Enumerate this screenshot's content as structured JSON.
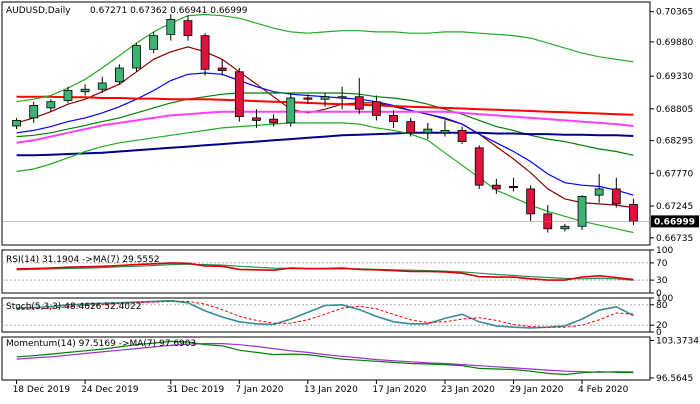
{
  "colors": {
    "bull_fill": "#3cb371",
    "bear_fill": "#dc143c",
    "sma5": "#8b0000",
    "ema10": "#0000ff",
    "sma20": "#008000",
    "sma55": "#ff0000",
    "sma100": "#ff40ff",
    "sma200": "#00008b",
    "bollinger": "#22aa22",
    "rsi_line": "#dd0000",
    "rsi_ma": "#2e8b57",
    "stoch_k": "#3a8a9a",
    "stoch_d": "#ff0000",
    "mom_line": "#008000",
    "mom_ma": "#9932cc",
    "last_price_bg": "#000000",
    "last_price_fg": "#ffffff"
  },
  "main": {
    "title": "AUDUSD,Daily",
    "ohlc": "0.67271 0.67362 0.66941 0.66999",
    "last_price": "0.66999",
    "last_value": 0.66999,
    "y_ticks": [
      "0.70365",
      "0.69880",
      "0.69330",
      "0.68805",
      "0.68295",
      "0.67770",
      "0.67245",
      "0.66735"
    ],
    "y_tick_values": [
      0.70365,
      0.6988,
      0.6933,
      0.68805,
      0.68295,
      0.6777,
      0.67245,
      0.66735
    ],
    "ylim": [
      0.6662,
      0.7052
    ]
  },
  "rsi": {
    "label": "RSI(14) 31.1904  ->MA(7) 29.5552",
    "y_ticks": [
      "100",
      "70",
      "30",
      "0"
    ],
    "y_tick_values": [
      100,
      70,
      30,
      0
    ],
    "ylim": [
      0,
      100
    ]
  },
  "stoch": {
    "label": "Stoch(5,3,3) 48.4626 52.4022",
    "y_ticks": [
      "100",
      "80",
      "20",
      "0"
    ],
    "y_tick_values": [
      100,
      80,
      20,
      0
    ],
    "ylim": [
      0,
      100
    ]
  },
  "momentum": {
    "label": "Momentum(14) 97.5169  ->MA(7) 97.6903",
    "y_ticks": [
      "103.3734",
      "96.5645"
    ],
    "y_tick_values": [
      103.3734,
      96.5645
    ],
    "ylim": [
      96.2,
      104.0
    ]
  },
  "x_labels": [
    "18 Dec 2019",
    "24 Dec 2019",
    "31 Dec 2019",
    "7 Jan 2020",
    "13 Jan 2020",
    "17 Jan 2020",
    "23 Jan 2020",
    "29 Jan 2020",
    "4 Feb 2020"
  ],
  "x_label_index": [
    0,
    4,
    9,
    13,
    17,
    21,
    25,
    29,
    33
  ],
  "chart_data": {
    "type": "candlestick",
    "title": "AUDUSD,Daily",
    "series_names": [],
    "candles": [
      {
        "o": 0.6853,
        "h": 0.6866,
        "l": 0.6848,
        "c": 0.6862
      },
      {
        "o": 0.6866,
        "h": 0.6892,
        "l": 0.6858,
        "c": 0.6886
      },
      {
        "o": 0.6882,
        "h": 0.6896,
        "l": 0.6876,
        "c": 0.6892
      },
      {
        "o": 0.6894,
        "h": 0.6916,
        "l": 0.689,
        "c": 0.691
      },
      {
        "o": 0.6908,
        "h": 0.692,
        "l": 0.6902,
        "c": 0.6912
      },
      {
        "o": 0.6912,
        "h": 0.6932,
        "l": 0.6906,
        "c": 0.6922
      },
      {
        "o": 0.6924,
        "h": 0.6952,
        "l": 0.692,
        "c": 0.6946
      },
      {
        "o": 0.6946,
        "h": 0.6986,
        "l": 0.694,
        "c": 0.6982
      },
      {
        "o": 0.6976,
        "h": 0.7004,
        "l": 0.697,
        "c": 0.6998
      },
      {
        "o": 0.7,
        "h": 0.7032,
        "l": 0.699,
        "c": 0.7024
      },
      {
        "o": 0.7022,
        "h": 0.703,
        "l": 0.699,
        "c": 0.6998
      },
      {
        "o": 0.6998,
        "h": 0.7002,
        "l": 0.6934,
        "c": 0.6944
      },
      {
        "o": 0.6946,
        "h": 0.696,
        "l": 0.6934,
        "c": 0.6942
      },
      {
        "o": 0.694,
        "h": 0.6946,
        "l": 0.686,
        "c": 0.6868
      },
      {
        "o": 0.6866,
        "h": 0.688,
        "l": 0.685,
        "c": 0.6862
      },
      {
        "o": 0.6864,
        "h": 0.6872,
        "l": 0.6852,
        "c": 0.6858
      },
      {
        "o": 0.6858,
        "h": 0.6906,
        "l": 0.6852,
        "c": 0.6898
      },
      {
        "o": 0.6898,
        "h": 0.6904,
        "l": 0.6888,
        "c": 0.6896
      },
      {
        "o": 0.6896,
        "h": 0.6906,
        "l": 0.6884,
        "c": 0.69
      },
      {
        "o": 0.6898,
        "h": 0.6916,
        "l": 0.688,
        "c": 0.69
      },
      {
        "o": 0.69,
        "h": 0.693,
        "l": 0.6872,
        "c": 0.688
      },
      {
        "o": 0.6892,
        "h": 0.6902,
        "l": 0.6862,
        "c": 0.687
      },
      {
        "o": 0.687,
        "h": 0.6878,
        "l": 0.685,
        "c": 0.686
      },
      {
        "o": 0.686,
        "h": 0.6866,
        "l": 0.6836,
        "c": 0.6842
      },
      {
        "o": 0.6842,
        "h": 0.6858,
        "l": 0.6832,
        "c": 0.6848
      },
      {
        "o": 0.6842,
        "h": 0.6862,
        "l": 0.6836,
        "c": 0.6846
      },
      {
        "o": 0.6846,
        "h": 0.6852,
        "l": 0.6824,
        "c": 0.6828
      },
      {
        "o": 0.6818,
        "h": 0.6822,
        "l": 0.6752,
        "c": 0.6758
      },
      {
        "o": 0.6758,
        "h": 0.6768,
        "l": 0.6744,
        "c": 0.6752
      },
      {
        "o": 0.6756,
        "h": 0.677,
        "l": 0.6748,
        "c": 0.6754
      },
      {
        "o": 0.6752,
        "h": 0.6758,
        "l": 0.67,
        "c": 0.6712
      },
      {
        "o": 0.6712,
        "h": 0.6726,
        "l": 0.6682,
        "c": 0.6688
      },
      {
        "o": 0.6688,
        "h": 0.6696,
        "l": 0.6684,
        "c": 0.6692
      },
      {
        "o": 0.6692,
        "h": 0.6742,
        "l": 0.6686,
        "c": 0.674
      },
      {
        "o": 0.6742,
        "h": 0.6776,
        "l": 0.673,
        "c": 0.6752
      },
      {
        "o": 0.6752,
        "h": 0.677,
        "l": 0.6722,
        "c": 0.6728
      },
      {
        "o": 0.6727,
        "h": 0.6736,
        "l": 0.6694,
        "c": 0.67
      }
    ],
    "overlays": [
      {
        "key": "sma5",
        "values": [
          0.6858,
          0.6866,
          0.6876,
          0.6888,
          0.6896,
          0.6908,
          0.692,
          0.694,
          0.696,
          0.6972,
          0.698,
          0.6972,
          0.696,
          0.694,
          0.692,
          0.69,
          0.688,
          0.6874,
          0.688,
          0.6888,
          0.689,
          0.689,
          0.6884,
          0.6878,
          0.6872,
          0.6864,
          0.6856,
          0.684,
          0.682,
          0.68,
          0.6778,
          0.6752,
          0.6736,
          0.673,
          0.6728,
          0.6726,
          0.6722
        ]
      },
      {
        "key": "ema10",
        "values": [
          0.6842,
          0.6846,
          0.6852,
          0.686,
          0.6866,
          0.6874,
          0.6884,
          0.6896,
          0.691,
          0.6926,
          0.6936,
          0.6938,
          0.6936,
          0.6926,
          0.6916,
          0.6908,
          0.6904,
          0.6902,
          0.69,
          0.6898,
          0.6896,
          0.6892,
          0.6886,
          0.6878,
          0.6872,
          0.6866,
          0.6856,
          0.684,
          0.6826,
          0.6812,
          0.6796,
          0.6776,
          0.6762,
          0.6758,
          0.6756,
          0.675,
          0.6742
        ]
      },
      {
        "key": "sma20",
        "values": [
          0.6836,
          0.6838,
          0.6842,
          0.6848,
          0.6854,
          0.686,
          0.6866,
          0.6874,
          0.6882,
          0.689,
          0.6896,
          0.69,
          0.6904,
          0.6906,
          0.6906,
          0.6906,
          0.6906,
          0.6906,
          0.6906,
          0.6906,
          0.6904,
          0.69,
          0.6898,
          0.6894,
          0.6888,
          0.688,
          0.6872,
          0.6862,
          0.6852,
          0.6846,
          0.6838,
          0.6832,
          0.6828,
          0.6822,
          0.6816,
          0.6812,
          0.6806
        ]
      },
      {
        "key": "sma55",
        "values": [
          0.69,
          0.69,
          0.69,
          0.6899,
          0.6899,
          0.6898,
          0.6898,
          0.6897,
          0.6897,
          0.6896,
          0.6896,
          0.6896,
          0.6895,
          0.6894,
          0.6893,
          0.6892,
          0.6891,
          0.689,
          0.6889,
          0.6888,
          0.6887,
          0.6886,
          0.6885,
          0.6884,
          0.6883,
          0.6882,
          0.6881,
          0.688,
          0.6879,
          0.6878,
          0.6877,
          0.6876,
          0.6875,
          0.6874,
          0.6873,
          0.6872,
          0.6871
        ]
      },
      {
        "key": "sma100",
        "values": [
          0.6826,
          0.683,
          0.6836,
          0.6842,
          0.6848,
          0.6854,
          0.6858,
          0.6862,
          0.6866,
          0.687,
          0.6872,
          0.6874,
          0.6876,
          0.6876,
          0.6876,
          0.6876,
          0.6876,
          0.6876,
          0.6876,
          0.6876,
          0.6876,
          0.6876,
          0.6876,
          0.6876,
          0.6876,
          0.6876,
          0.6874,
          0.6872,
          0.687,
          0.6868,
          0.6866,
          0.6864,
          0.6862,
          0.686,
          0.6858,
          0.6856,
          0.6853
        ]
      },
      {
        "key": "sma200",
        "values": [
          0.6806,
          0.6806,
          0.6807,
          0.6808,
          0.6809,
          0.681,
          0.6812,
          0.6814,
          0.6816,
          0.6818,
          0.682,
          0.6822,
          0.6824,
          0.6826,
          0.6828,
          0.683,
          0.6832,
          0.6834,
          0.6836,
          0.6838,
          0.6839,
          0.684,
          0.6841,
          0.6842,
          0.6842,
          0.6842,
          0.6842,
          0.6842,
          0.6841,
          0.6841,
          0.684,
          0.684,
          0.6839,
          0.6839,
          0.6838,
          0.6838,
          0.6837
        ]
      },
      {
        "key": "bollinger",
        "values": [
          0.678,
          0.6784,
          0.6792,
          0.6802,
          0.6812,
          0.682,
          0.6826,
          0.683,
          0.6834,
          0.6838,
          0.6842,
          0.6846,
          0.685,
          0.6852,
          0.6854,
          0.6856,
          0.6858,
          0.6858,
          0.6858,
          0.6858,
          0.6856,
          0.685,
          0.6846,
          0.684,
          0.683,
          0.681,
          0.679,
          0.677,
          0.675,
          0.6738,
          0.6726,
          0.6716,
          0.6708,
          0.67,
          0.6694,
          0.6688,
          0.6682
        ]
      },
      {
        "key": "bollinger",
        "values": [
          0.6892,
          0.6896,
          0.6902,
          0.6914,
          0.6928,
          0.6946,
          0.6966,
          0.6986,
          0.7004,
          0.7018,
          0.703,
          0.7032,
          0.703,
          0.7026,
          0.7018,
          0.701,
          0.7004,
          0.7002,
          0.7004,
          0.7006,
          0.7006,
          0.7004,
          0.7004,
          0.7002,
          0.7002,
          0.7004,
          0.7004,
          0.7002,
          0.7,
          0.6998,
          0.6994,
          0.6986,
          0.6978,
          0.697,
          0.6964,
          0.696,
          0.6956
        ]
      }
    ],
    "rsi": {
      "rsi": [
        56,
        57,
        58,
        60,
        61,
        62,
        64,
        66,
        68,
        70,
        69,
        63,
        62,
        55,
        54,
        53,
        58,
        57,
        57,
        58,
        55,
        54,
        52,
        50,
        50,
        49,
        46,
        38,
        37,
        37,
        33,
        30,
        30,
        37,
        40,
        36,
        31.19
      ],
      "ma": [
        54,
        55,
        56,
        57,
        58,
        59,
        61,
        62,
        64,
        66,
        67,
        66,
        65,
        62,
        60,
        58,
        57,
        56,
        56,
        56,
        56,
        55,
        54,
        53,
        52,
        51,
        49,
        46,
        43,
        41,
        38,
        36,
        34,
        33,
        34,
        33,
        29.56
      ]
    },
    "stoch": {
      "k": [
        70,
        72,
        75,
        80,
        82,
        84,
        86,
        88,
        90,
        92,
        86,
        62,
        44,
        30,
        24,
        22,
        38,
        58,
        78,
        80,
        66,
        46,
        30,
        24,
        24,
        40,
        52,
        30,
        18,
        14,
        12,
        14,
        18,
        38,
        64,
        74,
        48.46
      ],
      "d": [
        66,
        68,
        70,
        74,
        78,
        80,
        84,
        86,
        88,
        90,
        90,
        82,
        66,
        46,
        34,
        26,
        26,
        36,
        52,
        70,
        76,
        68,
        52,
        36,
        28,
        30,
        38,
        42,
        34,
        22,
        16,
        14,
        14,
        20,
        36,
        56,
        52.4
      ]
    },
    "momentum": {
      "mom": [
        100.4,
        100.6,
        100.9,
        101.2,
        101.5,
        101.8,
        102.2,
        102.6,
        102.9,
        103.2,
        103.1,
        102.6,
        102.4,
        101.6,
        101.2,
        100.8,
        100.9,
        100.8,
        100.4,
        100.0,
        99.8,
        99.6,
        99.4,
        99.2,
        99.1,
        99.0,
        98.8,
        98.3,
        98.2,
        98.1,
        97.8,
        97.4,
        97.2,
        97.5,
        97.7,
        97.6,
        97.52
      ],
      "ma": [
        100.0,
        100.2,
        100.4,
        100.7,
        101.0,
        101.3,
        101.6,
        101.9,
        102.2,
        102.5,
        102.7,
        102.8,
        102.8,
        102.6,
        102.3,
        101.9,
        101.5,
        101.2,
        100.8,
        100.5,
        100.2,
        99.9,
        99.7,
        99.5,
        99.3,
        99.2,
        99.0,
        98.8,
        98.6,
        98.4,
        98.2,
        98.0,
        97.8,
        97.7,
        97.6,
        97.7,
        97.69
      ]
    }
  }
}
